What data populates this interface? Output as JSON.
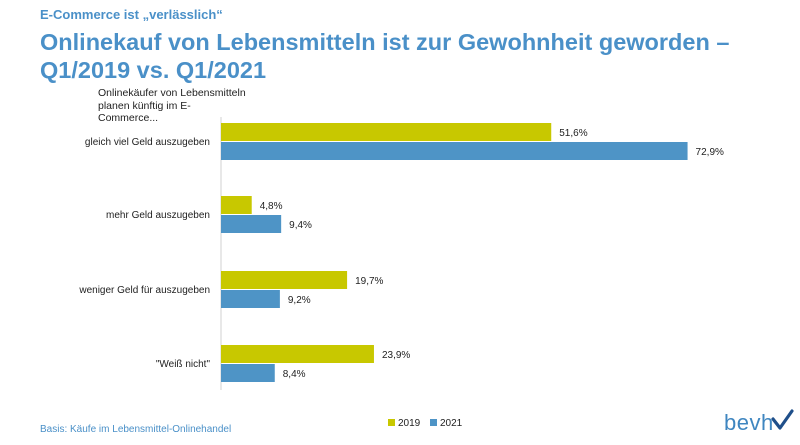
{
  "header": {
    "kicker": "E-Commerce ist „verlässlich“",
    "title_line1": "Onlinekauf von Lebensmitteln ist zur Gewohnheit geworden –",
    "title_line2": "Q1/2019 vs. Q1/2021"
  },
  "chart_data": {
    "type": "bar",
    "orientation": "horizontal",
    "question": "Onlinekäufer von Lebensmitteln planen künftig im E-Commerce...",
    "categories": [
      "gleich viel Geld auszugeben",
      "mehr Geld auszugeben",
      "weniger Geld für auszugeben",
      "\"Weiß nicht\""
    ],
    "series": [
      {
        "name": "2019",
        "color": "#c8c800",
        "values": [
          51.6,
          4.8,
          19.7,
          23.9
        ]
      },
      {
        "name": "2021",
        "color": "#4e94c6",
        "values": [
          72.9,
          9.4,
          9.2,
          8.4
        ]
      }
    ],
    "value_labels": [
      [
        "51,6%",
        "4,8%",
        "19,7%",
        "23,9%"
      ],
      [
        "72,9%",
        "9,4%",
        "9,2%",
        "8,4%"
      ]
    ],
    "unit": "%",
    "xlim": [
      0,
      100
    ],
    "grid": false,
    "legend_position": "bottom-right"
  },
  "footer": {
    "basis": "Basis: Käufe im Lebensmittel-Onlinehandel",
    "logo_text": "bevh",
    "logo_icon": "checkmark-icon",
    "logo_check_color": "#1f4f8a"
  }
}
